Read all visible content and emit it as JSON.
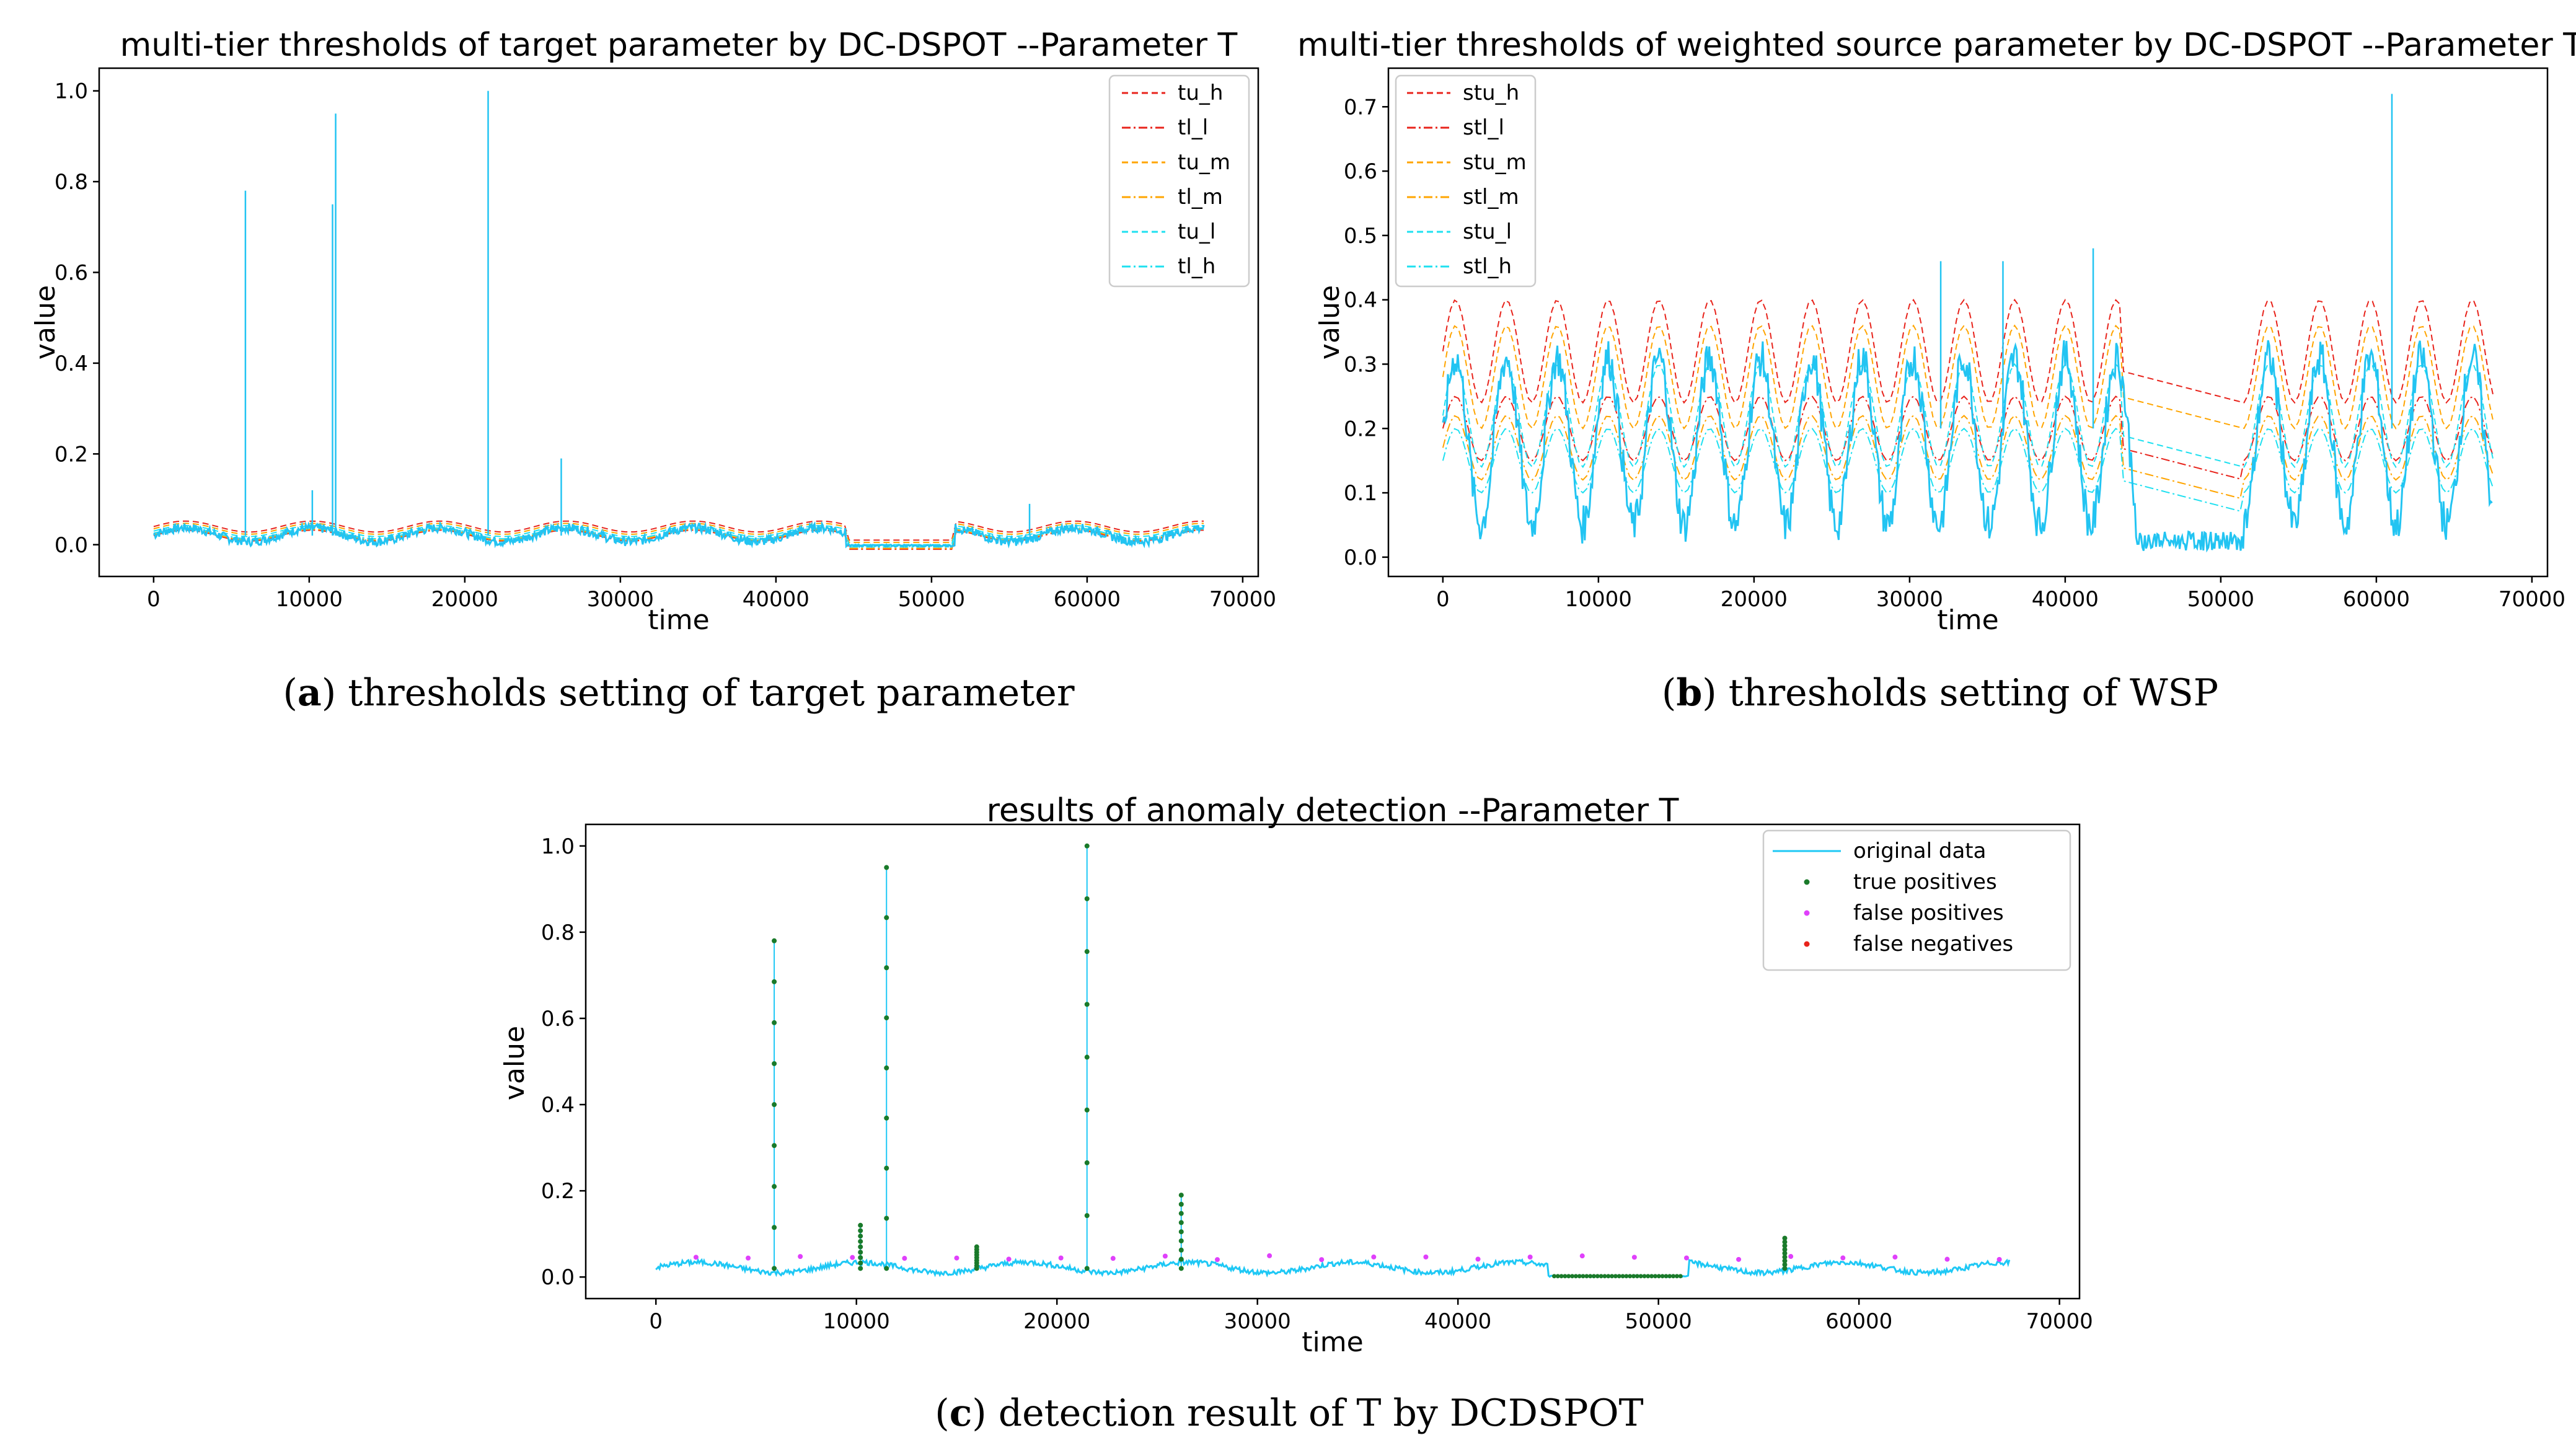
{
  "chart_data": [
    {
      "type": "line",
      "title": "multi-tier thresholds of target parameter by DC-DSPOT --Parameter T",
      "xlabel": "time",
      "ylabel": "value",
      "xlim": [
        -3500,
        71000
      ],
      "ylim": [
        -0.07,
        1.05
      ],
      "xticks": [
        "0",
        "10000",
        "20000",
        "30000",
        "40000",
        "50000",
        "60000",
        "70000"
      ],
      "yticks": [
        "0.0",
        "0.2",
        "0.4",
        "0.6",
        "0.8",
        "1.0"
      ],
      "legend_position": "upper right",
      "series": [
        {
          "name": "tu_h",
          "color": "#e8231b",
          "dash": "dashed",
          "level": 0.04
        },
        {
          "name": "tl_l",
          "color": "#e8231b",
          "dash": "dashdot",
          "level": 0.02
        },
        {
          "name": "tu_m",
          "color": "#ffa500",
          "dash": "dashed",
          "level": 0.035
        },
        {
          "name": "tl_m",
          "color": "#ffa500",
          "dash": "dashdot",
          "level": 0.022
        },
        {
          "name": "tu_l",
          "color": "#1ee0f0",
          "dash": "dashed",
          "level": 0.03
        },
        {
          "name": "tl_h",
          "color": "#1ee0f0",
          "dash": "dashdot",
          "level": 0.025
        }
      ],
      "spikes": [
        {
          "x": 5900,
          "y": 0.78
        },
        {
          "x": 10200,
          "y": 0.12
        },
        {
          "x": 11500,
          "y": 0.75
        },
        {
          "x": 11700,
          "y": 0.95
        },
        {
          "x": 21500,
          "y": 1.0
        },
        {
          "x": 26200,
          "y": 0.19
        },
        {
          "x": 56300,
          "y": 0.09
        }
      ],
      "caption": {
        "label": "a",
        "text": "thresholds setting of target parameter"
      }
    },
    {
      "type": "line",
      "title": "multi-tier thresholds of weighted source parameter by DC-DSPOT --Parameter T",
      "xlabel": "time",
      "ylabel": "value",
      "xlim": [
        -3500,
        71000
      ],
      "ylim": [
        -0.03,
        0.76
      ],
      "xticks": [
        "0",
        "10000",
        "20000",
        "30000",
        "40000",
        "50000",
        "60000",
        "70000"
      ],
      "yticks": [
        "0.0",
        "0.1",
        "0.2",
        "0.3",
        "0.4",
        "0.5",
        "0.6",
        "0.7"
      ],
      "legend_position": "upper left",
      "series": [
        {
          "name": "stu_h",
          "color": "#e8231b",
          "dash": "dashed"
        },
        {
          "name": "stl_l",
          "color": "#e8231b",
          "dash": "dashdot"
        },
        {
          "name": "stu_m",
          "color": "#ffa500",
          "dash": "dashed"
        },
        {
          "name": "stl_m",
          "color": "#ffa500",
          "dash": "dashdot"
        },
        {
          "name": "stu_l",
          "color": "#1ee0f0",
          "dash": "dashed"
        },
        {
          "name": "stl_h",
          "color": "#1ee0f0",
          "dash": "dashdot"
        }
      ],
      "spikes": [
        {
          "x": 61000,
          "y": 0.72
        },
        {
          "x": 41800,
          "y": 0.48
        },
        {
          "x": 36000,
          "y": 0.46
        },
        {
          "x": 32000,
          "y": 0.46
        }
      ],
      "caption": {
        "label": "b",
        "text": "thresholds setting of WSP"
      }
    },
    {
      "type": "scatter",
      "title": "results of anomaly detection --Parameter T",
      "xlabel": "time",
      "ylabel": "value",
      "xlim": [
        -3500,
        71000
      ],
      "ylim": [
        -0.05,
        1.05
      ],
      "xticks": [
        "0",
        "10000",
        "20000",
        "30000",
        "40000",
        "50000",
        "60000",
        "70000"
      ],
      "yticks": [
        "0.0",
        "0.2",
        "0.4",
        "0.6",
        "0.8",
        "1.0"
      ],
      "legend_position": "upper right",
      "series": [
        {
          "name": "original data",
          "color": "#1ec8f5",
          "marker": "line"
        },
        {
          "name": "true positives",
          "color": "#1a7a2a",
          "marker": "dot"
        },
        {
          "name": "false positives",
          "color": "#e040fb",
          "marker": "dot"
        },
        {
          "name": "false negatives",
          "color": "#e8231b",
          "marker": "dot"
        }
      ],
      "spikes": [
        {
          "x": 5900,
          "y": 0.78
        },
        {
          "x": 11500,
          "y": 0.95
        },
        {
          "x": 21500,
          "y": 1.0
        },
        {
          "x": 26200,
          "y": 0.19
        },
        {
          "x": 10200,
          "y": 0.12
        },
        {
          "x": 16000,
          "y": 0.07
        },
        {
          "x": 56300,
          "y": 0.09
        }
      ],
      "caption": {
        "label": "c",
        "text": "detection result of T by DCDSPOT"
      }
    }
  ]
}
